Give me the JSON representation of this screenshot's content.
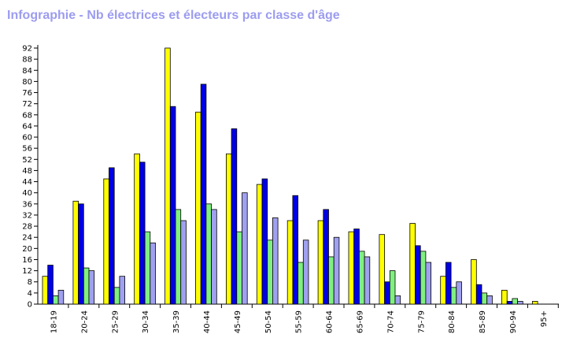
{
  "header": {
    "title": "Infographie - Nb électrices et électeurs par classe d'âge"
  },
  "chart_data": {
    "type": "bar",
    "title": "Infographie - Nb électrices et électeurs par classe d'âge",
    "categories": [
      "18-19",
      "20-24",
      "25-29",
      "30-34",
      "35-39",
      "40-44",
      "45-49",
      "50-54",
      "55-59",
      "60-64",
      "65-69",
      "70-74",
      "75-79",
      "80-84",
      "85-89",
      "90-94",
      "95+"
    ],
    "series": [
      {
        "color": "#ffff00",
        "values": [
          10,
          37,
          45,
          54,
          92,
          69,
          54,
          43,
          30,
          30,
          26,
          25,
          29,
          10,
          16,
          5,
          1
        ]
      },
      {
        "color": "#0000e6",
        "values": [
          14,
          36,
          49,
          51,
          71,
          79,
          63,
          45,
          39,
          34,
          27,
          8,
          21,
          15,
          7,
          1,
          0
        ]
      },
      {
        "color": "#80f080",
        "values": [
          3,
          13,
          6,
          26,
          34,
          36,
          26,
          23,
          15,
          17,
          19,
          12,
          19,
          6,
          4,
          2,
          0
        ]
      },
      {
        "color": "#a0a0f0",
        "values": [
          5,
          12,
          10,
          22,
          30,
          34,
          40,
          31,
          23,
          24,
          17,
          3,
          15,
          8,
          3,
          1,
          0
        ]
      }
    ],
    "xlabel": "",
    "ylabel": "",
    "ylim": [
      0,
      92
    ],
    "yticks": [
      0,
      4,
      8,
      12,
      16,
      20,
      24,
      28,
      32,
      36,
      40,
      44,
      48,
      52,
      56,
      60,
      64,
      68,
      72,
      76,
      80,
      84,
      88,
      92
    ],
    "grid": false,
    "legend": "none"
  }
}
